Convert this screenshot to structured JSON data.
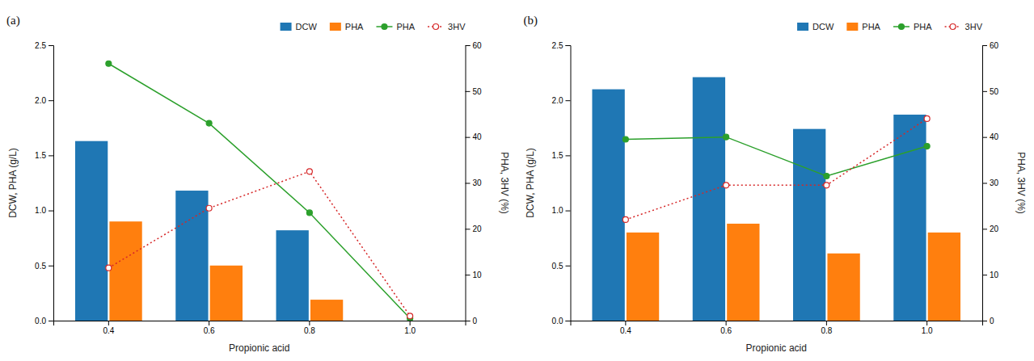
{
  "chart_data": [
    {
      "type": "bar",
      "title": "(a)",
      "categories": [
        "0.4",
        "0.6",
        "0.8",
        "1.0"
      ],
      "xlabel": "Propionic acid",
      "ylabel": "DCW, PHA (g/L)",
      "y2label": "PHA, 3HV (%)",
      "series": [
        {
          "name": "DCW",
          "values": [
            1.63,
            1.18,
            0.82,
            0
          ]
        },
        {
          "name": "PHA",
          "values": [
            0.9,
            0.5,
            0.19,
            0
          ]
        },
        {
          "name": "PHA",
          "type": "line",
          "axis": "y2",
          "marker": "circle",
          "line_style": "solid",
          "values": [
            56.0,
            43.0,
            23.5,
            0.5
          ]
        },
        {
          "name": "3HV",
          "type": "line",
          "axis": "y2",
          "marker": "circle-open",
          "line_style": "dotted",
          "values": [
            11.5,
            24.5,
            32.5,
            1.0
          ]
        }
      ],
      "ylim": [
        0,
        2.5
      ],
      "yticks": [
        {
          "value": 0,
          "label": "0.0"
        },
        0.5,
        {
          "value": 1,
          "label": "1.0"
        },
        1.5,
        {
          "value": 2,
          "label": "2.0"
        },
        2.5
      ],
      "y2lim": [
        0,
        60
      ],
      "y2ticks": [
        0,
        10,
        20,
        30,
        40,
        50,
        60
      ],
      "grid": false,
      "legend": "upper right"
    },
    {
      "type": "bar",
      "title": "(b)",
      "categories": [
        "0.4",
        "0.6",
        "0.8",
        "1.0"
      ],
      "xlabel": "Propionic acid",
      "ylabel": "DCW, PHA (g/L)",
      "y2label": "PHA, 3HV (%)",
      "series": [
        {
          "name": "DCW",
          "values": [
            2.1,
            2.21,
            1.74,
            1.87
          ]
        },
        {
          "name": "PHA",
          "values": [
            0.8,
            0.88,
            0.61,
            0.8
          ]
        },
        {
          "name": "PHA",
          "type": "line",
          "axis": "y2",
          "marker": "circle",
          "line_style": "solid",
          "values": [
            39.5,
            40.0,
            31.5,
            38.0
          ]
        },
        {
          "name": "3HV",
          "type": "line",
          "axis": "y2",
          "marker": "circle-open",
          "line_style": "dotted",
          "values": [
            22.0,
            29.5,
            29.5,
            44.0
          ]
        }
      ],
      "ylim": [
        0,
        2.5
      ],
      "yticks": [
        {
          "value": 0,
          "label": "0.0"
        },
        0.5,
        {
          "value": 1,
          "label": "1.0"
        },
        1.5,
        {
          "value": 2,
          "label": "2.0"
        },
        2.5
      ],
      "y2lim": [
        0,
        60
      ],
      "y2ticks": [
        0,
        10,
        20,
        30,
        40,
        50,
        60
      ],
      "grid": false,
      "legend": "upper right"
    }
  ]
}
